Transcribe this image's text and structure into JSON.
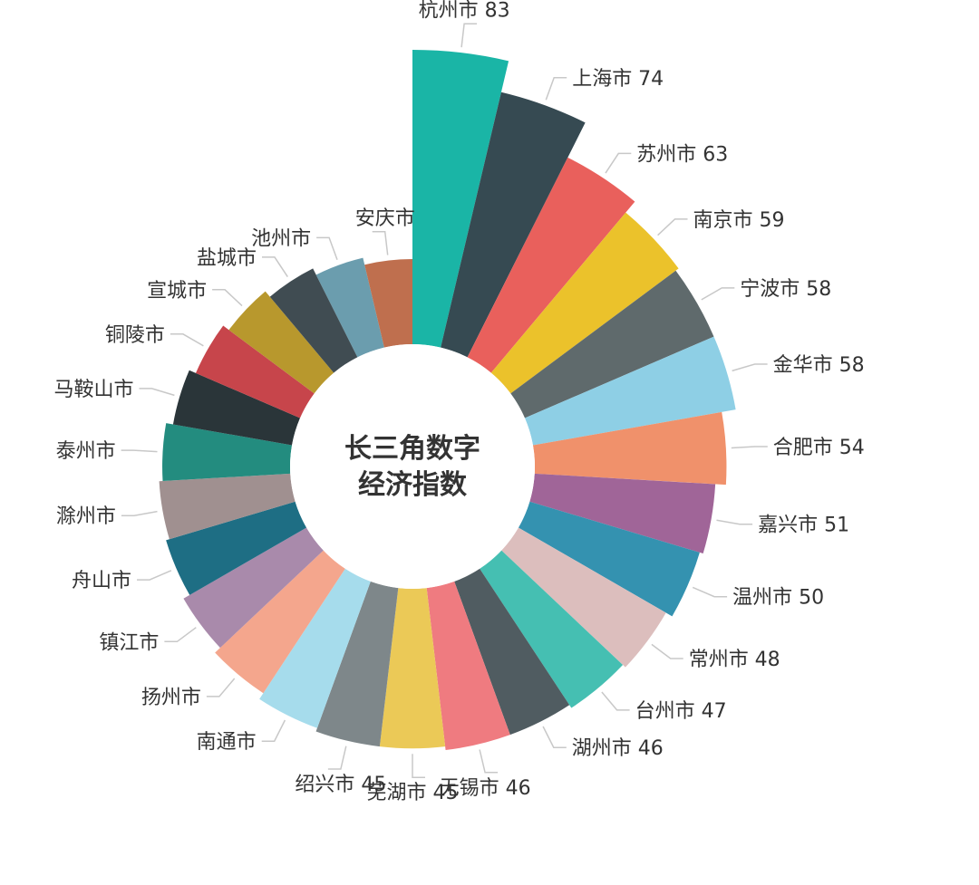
{
  "chart_data": {
    "type": "pie",
    "variant": "rose",
    "title": "长三角数字经济指数",
    "title_lines": [
      "长三角数字",
      "经济指数"
    ],
    "categories": [
      "杭州市",
      "上海市",
      "苏州市",
      "南京市",
      "宁波市",
      "金华市",
      "合肥市",
      "嘉兴市",
      "温州市",
      "常州市",
      "台州市",
      "湖州市",
      "无锡市",
      "芜湖市",
      "绍兴市",
      "南通市",
      "扬州市",
      "镇江市",
      "舟山市",
      "滁州市",
      "泰州市",
      "马鞍山市",
      "铜陵市",
      "宣城市",
      "盐城市",
      "池州市",
      "安庆市"
    ],
    "values": [
      83,
      74,
      63,
      59,
      58,
      58,
      54,
      51,
      50,
      48,
      47,
      46,
      46,
      45,
      45,
      44,
      42,
      40,
      38,
      37,
      36,
      34,
      32,
      30,
      28,
      26,
      24
    ],
    "value_labels": [
      "83",
      "74",
      "63",
      "59",
      "58",
      "58",
      "54",
      "51",
      "50",
      "48",
      "47",
      "46",
      "46",
      "45",
      "45",
      "",
      "",
      "",
      "",
      "",
      "",
      "",
      "",
      "",
      "",
      "",
      ""
    ],
    "colors": [
      "#1ab5a6",
      "#364a52",
      "#e9605c",
      "#ebc22b",
      "#5f6a6c",
      "#8ecfe5",
      "#f0916b",
      "#a06598",
      "#3492b0",
      "#dcbebd",
      "#45bfb2",
      "#505c61",
      "#ef7b80",
      "#ebc957",
      "#7e878a",
      "#a6dcec",
      "#f4a68d",
      "#a98aab",
      "#1e6e84",
      "#a09090",
      "#238c7f",
      "#2a3539",
      "#c7454b",
      "#b8982d",
      "#404c52",
      "#6b9dae",
      "#bf6f4e"
    ],
    "legend": "none"
  }
}
